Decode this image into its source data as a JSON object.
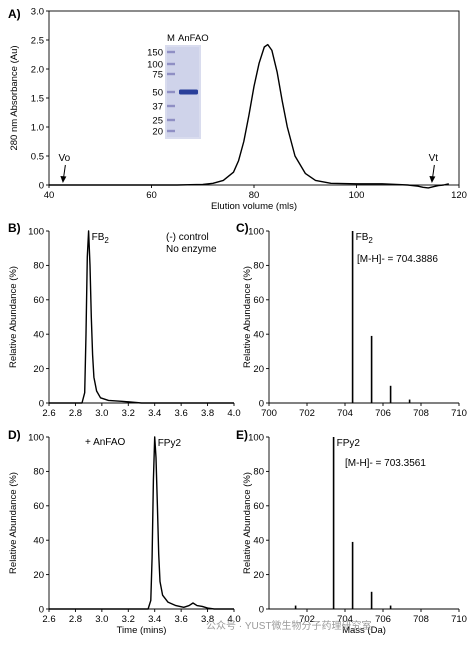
{
  "watermark": "公众号 · YUST微生物分子药理研究室",
  "chart_data": [
    {
      "id": "A",
      "panel_label": "A)",
      "type": "line",
      "xlabel": "Elution volume (mls)",
      "ylabel": "280 nm Absorbance (Au)",
      "xlim": [
        40,
        120
      ],
      "ylim": [
        0,
        3.0
      ],
      "xticks": [
        40,
        60,
        80,
        100,
        120
      ],
      "yticks": [
        0.0,
        0.5,
        1.0,
        1.5,
        2.0,
        2.5,
        3.0
      ],
      "ytick_labels": [
        "0",
        "0.5",
        "1.0",
        "1.5",
        "2.0",
        "2.5",
        "3.0"
      ],
      "series": [
        {
          "x": [
            40,
            50,
            60,
            65,
            70,
            72,
            74,
            76,
            77,
            78,
            79,
            80,
            81,
            82,
            82.7,
            83.5,
            84.5,
            85.5,
            86.5,
            88,
            90,
            92,
            95,
            100,
            105,
            110,
            112,
            113,
            114,
            115,
            116,
            117,
            118
          ],
          "y": [
            0.0,
            0.0,
            0.0,
            0.0,
            0.01,
            0.03,
            0.08,
            0.22,
            0.42,
            0.75,
            1.2,
            1.7,
            2.1,
            2.38,
            2.42,
            2.32,
            1.95,
            1.45,
            1.0,
            0.5,
            0.2,
            0.08,
            0.03,
            0.02,
            0.02,
            0.0,
            -0.02,
            -0.04,
            -0.05,
            -0.03,
            -0.01,
            0.0,
            0.02
          ]
        }
      ],
      "annotations": [
        {
          "label": "Vo",
          "x": 43
        },
        {
          "label": "Vt",
          "x": 115
        }
      ],
      "inset_gel": {
        "marker_header": "M",
        "sample_header": "AnFAO",
        "marker_sizes": [
          "150",
          "100",
          "75",
          "50",
          "37",
          "25",
          "20"
        ],
        "band_size": "50"
      }
    },
    {
      "id": "B",
      "panel_label": "B)",
      "type": "line",
      "xlabel": "",
      "ylabel": "Relative Abundance (%)",
      "xlim": [
        2.6,
        4.0
      ],
      "ylim": [
        0,
        100
      ],
      "xticks": [
        2.6,
        2.8,
        3.0,
        3.2,
        3.4,
        3.6,
        3.8,
        4.0
      ],
      "xtick_labels": [
        "2.6",
        "2.8",
        "3.0",
        "3.2",
        "3.4",
        "3.6",
        "3.8",
        "4.0"
      ],
      "yticks": [
        0,
        20,
        40,
        60,
        80,
        100
      ],
      "series": [
        {
          "x": [
            2.6,
            2.85,
            2.87,
            2.88,
            2.89,
            2.9,
            2.91,
            2.92,
            2.93,
            2.94,
            2.96,
            2.99,
            3.05,
            3.15,
            3.3,
            4.0
          ],
          "y": [
            0,
            0,
            6,
            40,
            85,
            100,
            80,
            50,
            28,
            15,
            7,
            3,
            1.5,
            1,
            0,
            0
          ]
        }
      ],
      "peak_label": {
        "text": "FB",
        "sub": "2",
        "x": 2.9
      },
      "annotations": [
        "(-) control",
        "No enzyme"
      ]
    },
    {
      "id": "C",
      "panel_label": "C)",
      "type": "stick",
      "xlabel": "",
      "ylabel": "Relative Abundance (%)",
      "xlim": [
        700,
        710
      ],
      "ylim": [
        0,
        100
      ],
      "xticks": [
        700,
        702,
        704,
        706,
        708,
        710
      ],
      "yticks": [
        0,
        20,
        40,
        60,
        80,
        100
      ],
      "peaks": [
        {
          "x": 704.4,
          "y": 100
        },
        {
          "x": 705.4,
          "y": 39
        },
        {
          "x": 706.4,
          "y": 10
        },
        {
          "x": 707.4,
          "y": 2
        }
      ],
      "peak_label": {
        "text": "FB",
        "sub": "2",
        "x": 704.4
      },
      "annotations": [
        "[M-H]- = 704.3886"
      ]
    },
    {
      "id": "D",
      "panel_label": "D)",
      "type": "line",
      "xlabel": "Time (mins)",
      "ylabel": "Relative Abundance (%)",
      "xlim": [
        2.6,
        4.0
      ],
      "ylim": [
        0,
        100
      ],
      "xticks": [
        2.6,
        2.8,
        3.0,
        3.2,
        3.4,
        3.6,
        3.8,
        4.0
      ],
      "xtick_labels": [
        "2.6",
        "2.8",
        "3.0",
        "3.2",
        "3.4",
        "3.6",
        "3.8",
        "4.0"
      ],
      "yticks": [
        0,
        20,
        40,
        60,
        80,
        100
      ],
      "series": [
        {
          "x": [
            2.6,
            3.35,
            3.37,
            3.38,
            3.39,
            3.4,
            3.41,
            3.42,
            3.43,
            3.44,
            3.46,
            3.5,
            3.56,
            3.62,
            3.66,
            3.69,
            3.72,
            3.76,
            3.8,
            3.85,
            4.0
          ],
          "y": [
            0,
            0,
            5,
            30,
            75,
            100,
            88,
            60,
            32,
            16,
            8,
            4,
            2,
            1,
            2,
            3.5,
            2,
            1.5,
            0.5,
            0,
            0
          ]
        }
      ],
      "peak_label": {
        "text": "FPy2",
        "x": 3.4
      },
      "annotations": [
        "+ AnFAO"
      ]
    },
    {
      "id": "E",
      "panel_label": "E)",
      "type": "stick",
      "xlabel": "Mass (Da)",
      "ylabel": "Relative Abundance (%)",
      "xlim": [
        700,
        710
      ],
      "ylim": [
        0,
        100
      ],
      "xticks": [
        702,
        704,
        706,
        708,
        710
      ],
      "yticks": [
        0,
        20,
        40,
        60,
        80,
        100
      ],
      "peaks": [
        {
          "x": 701.4,
          "y": 2
        },
        {
          "x": 703.4,
          "y": 100
        },
        {
          "x": 704.4,
          "y": 39
        },
        {
          "x": 705.4,
          "y": 10
        },
        {
          "x": 706.4,
          "y": 2
        }
      ],
      "peak_label": {
        "text": "FPy2",
        "x": 703.4
      },
      "annotations": [
        "[M-H]- = 703.3561"
      ]
    }
  ]
}
